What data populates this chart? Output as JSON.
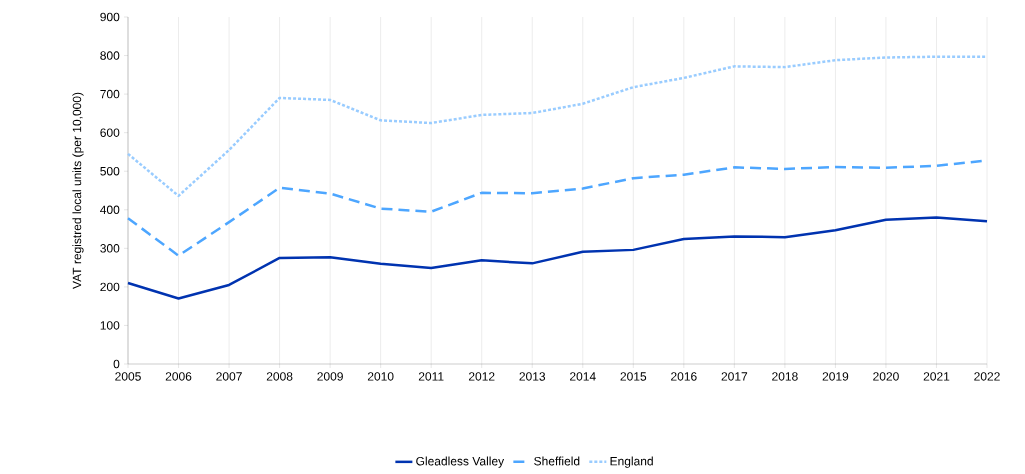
{
  "chart_data": {
    "type": "line",
    "ylabel": "VAT registred local units (per 10,000)",
    "x": [
      2005,
      2006,
      2007,
      2008,
      2009,
      2010,
      2011,
      2012,
      2013,
      2014,
      2015,
      2016,
      2017,
      2018,
      2019,
      2020,
      2021,
      2022
    ],
    "xlim": [
      2005,
      2022
    ],
    "xticks": [
      2005,
      2006,
      2007,
      2008,
      2009,
      2010,
      2011,
      2012,
      2013,
      2014,
      2015,
      2016,
      2017,
      2018,
      2019,
      2020,
      2021,
      2022
    ],
    "ylim": [
      0,
      900
    ],
    "yticks": [
      0,
      100,
      200,
      300,
      400,
      500,
      600,
      700,
      800,
      900
    ],
    "grid": "x",
    "legend": "bottom",
    "marker": "none",
    "series": [
      {
        "name": "Gleadless Valley",
        "color": "#0033b0",
        "line_style": "solid",
        "values": [
          210,
          170,
          205,
          275,
          277,
          260,
          249,
          269,
          261,
          291,
          296,
          324,
          331,
          329,
          347,
          374,
          380,
          370
        ]
      },
      {
        "name": "Sheffield",
        "color": "#4da6ff",
        "line_style": "dashed",
        "values": [
          378,
          281,
          368,
          457,
          442,
          403,
          395,
          444,
          443,
          455,
          482,
          491,
          510,
          506,
          511,
          509,
          514,
          528
        ]
      },
      {
        "name": "England",
        "color": "#99ccff",
        "line_style": "dotted",
        "values": [
          545,
          436,
          555,
          690,
          685,
          632,
          625,
          646,
          651,
          675,
          718,
          742,
          772,
          770,
          788,
          795,
          797,
          797
        ]
      }
    ]
  }
}
